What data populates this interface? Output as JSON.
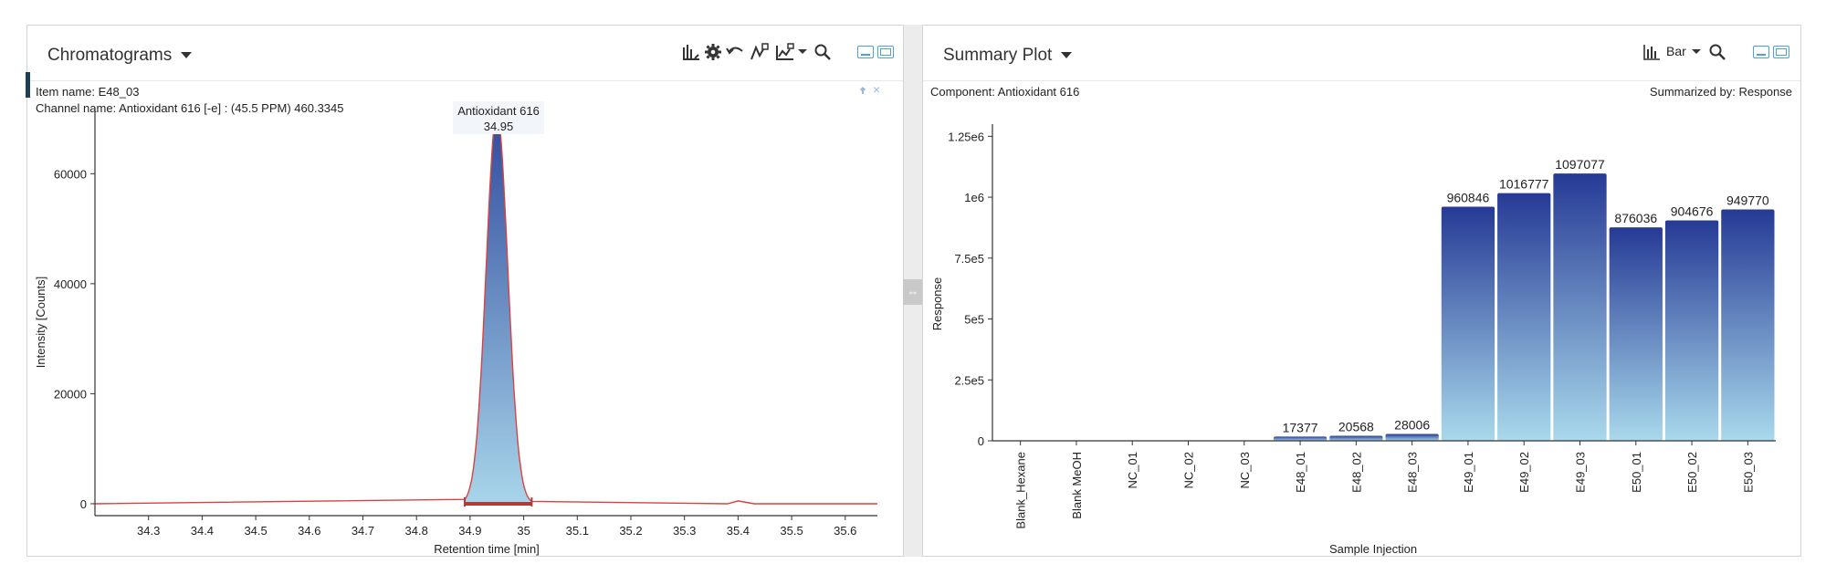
{
  "left": {
    "title": "Chromatograms",
    "item_name": "Item name: E48_03",
    "channel_name": "Channel name: Antioxidant 616 [-e] : (45.5 PPM) 460.3345",
    "peak_label": "Antioxidant 616",
    "peak_rt": "34.95",
    "pin_icon": "pin-icon",
    "close_glyph": "×",
    "toolbar_icons": [
      "peak-integration-icon",
      "gear-icon",
      "undo-icon",
      "trace-icon",
      "overlay-chart-icon",
      "chevron-down-icon",
      "search-icon"
    ]
  },
  "right": {
    "title": "Summary Plot",
    "component": "Component: Antioxidant 616",
    "summarized_by": "Summarized by: Response",
    "chart_type_label": "Bar",
    "toolbar_icons": [
      "bar-chart-icon",
      "chevron-down-icon",
      "search-icon"
    ]
  },
  "splitter_glyph": "⇔",
  "colors": {
    "peak_fill_top": "#2f4a9d",
    "peak_fill_bottom": "#a8d5ea",
    "trace_line": "#d9423f",
    "baseline_marker": "#b33a3a",
    "bar_top": "#263a95",
    "bar_bottom": "#a9d9ec",
    "accent": "#4aa3df"
  },
  "chart_data": [
    {
      "type": "line",
      "title": "",
      "xlabel": "Retention time [min]",
      "ylabel": "Intensity [Counts]",
      "xlim": [
        34.2,
        35.66
      ],
      "ylim": [
        -1500,
        72000
      ],
      "x_ticks": [
        34.3,
        34.4,
        34.5,
        34.6,
        34.7,
        34.8,
        34.9,
        35.0,
        35.1,
        35.2,
        35.3,
        35.4,
        35.5,
        35.6
      ],
      "x_tick_labels": [
        "34.3",
        "34.4",
        "34.5",
        "34.6",
        "34.7",
        "34.8",
        "34.9",
        "35",
        "35.1",
        "35.2",
        "35.3",
        "35.4",
        "35.5",
        "35.6"
      ],
      "y_ticks": [
        0,
        20000,
        40000,
        60000
      ],
      "y_tick_labels": [
        "0",
        "20000",
        "40000",
        "60000"
      ],
      "peak": {
        "apex_rt": 34.95,
        "apex_intensity": 71000,
        "start_rt": 34.89,
        "end_rt": 35.015
      },
      "baseline": [
        [
          34.2,
          0
        ],
        [
          35.38,
          0
        ],
        [
          35.4,
          500
        ],
        [
          35.43,
          0
        ],
        [
          35.66,
          0
        ]
      ]
    },
    {
      "type": "bar",
      "title": "",
      "xlabel": "Sample Injection",
      "ylabel": "Response",
      "ylim": [
        0,
        1300000
      ],
      "y_ticks": [
        0,
        250000,
        500000,
        750000,
        1000000,
        1250000
      ],
      "y_tick_labels": [
        "0",
        "2.5e5",
        "5e5",
        "7.5e5",
        "1e6",
        "1.25e6"
      ],
      "categories": [
        "Blank_Hexane",
        "Blank MeOH",
        "NC_01",
        "NC_02",
        "NC_03",
        "E48_01",
        "E48_02",
        "E48_03",
        "E49_01",
        "E49_02",
        "E49_03",
        "E50_01",
        "E50_02",
        "E50_03"
      ],
      "category_labels": [
        "Blank_Hexane",
        "Blank MeOH",
        "NC_01",
        "NC_02",
        "NC_03",
        "E48_01",
        "E48_02",
        "E48_03",
        "E49_01",
        "E49_02",
        "E49_03",
        "E50_01",
        "E50_02",
        "E50_03"
      ],
      "values": [
        0,
        0,
        0,
        0,
        0,
        17377,
        20568,
        28006,
        960846,
        1016777,
        1097077,
        876036,
        904676,
        949770
      ],
      "value_labels": [
        "",
        "",
        "",
        "",
        "",
        "17377",
        "20568",
        "28006",
        "960846",
        "1016777",
        "1097077",
        "876036",
        "904676",
        "949770"
      ]
    }
  ]
}
